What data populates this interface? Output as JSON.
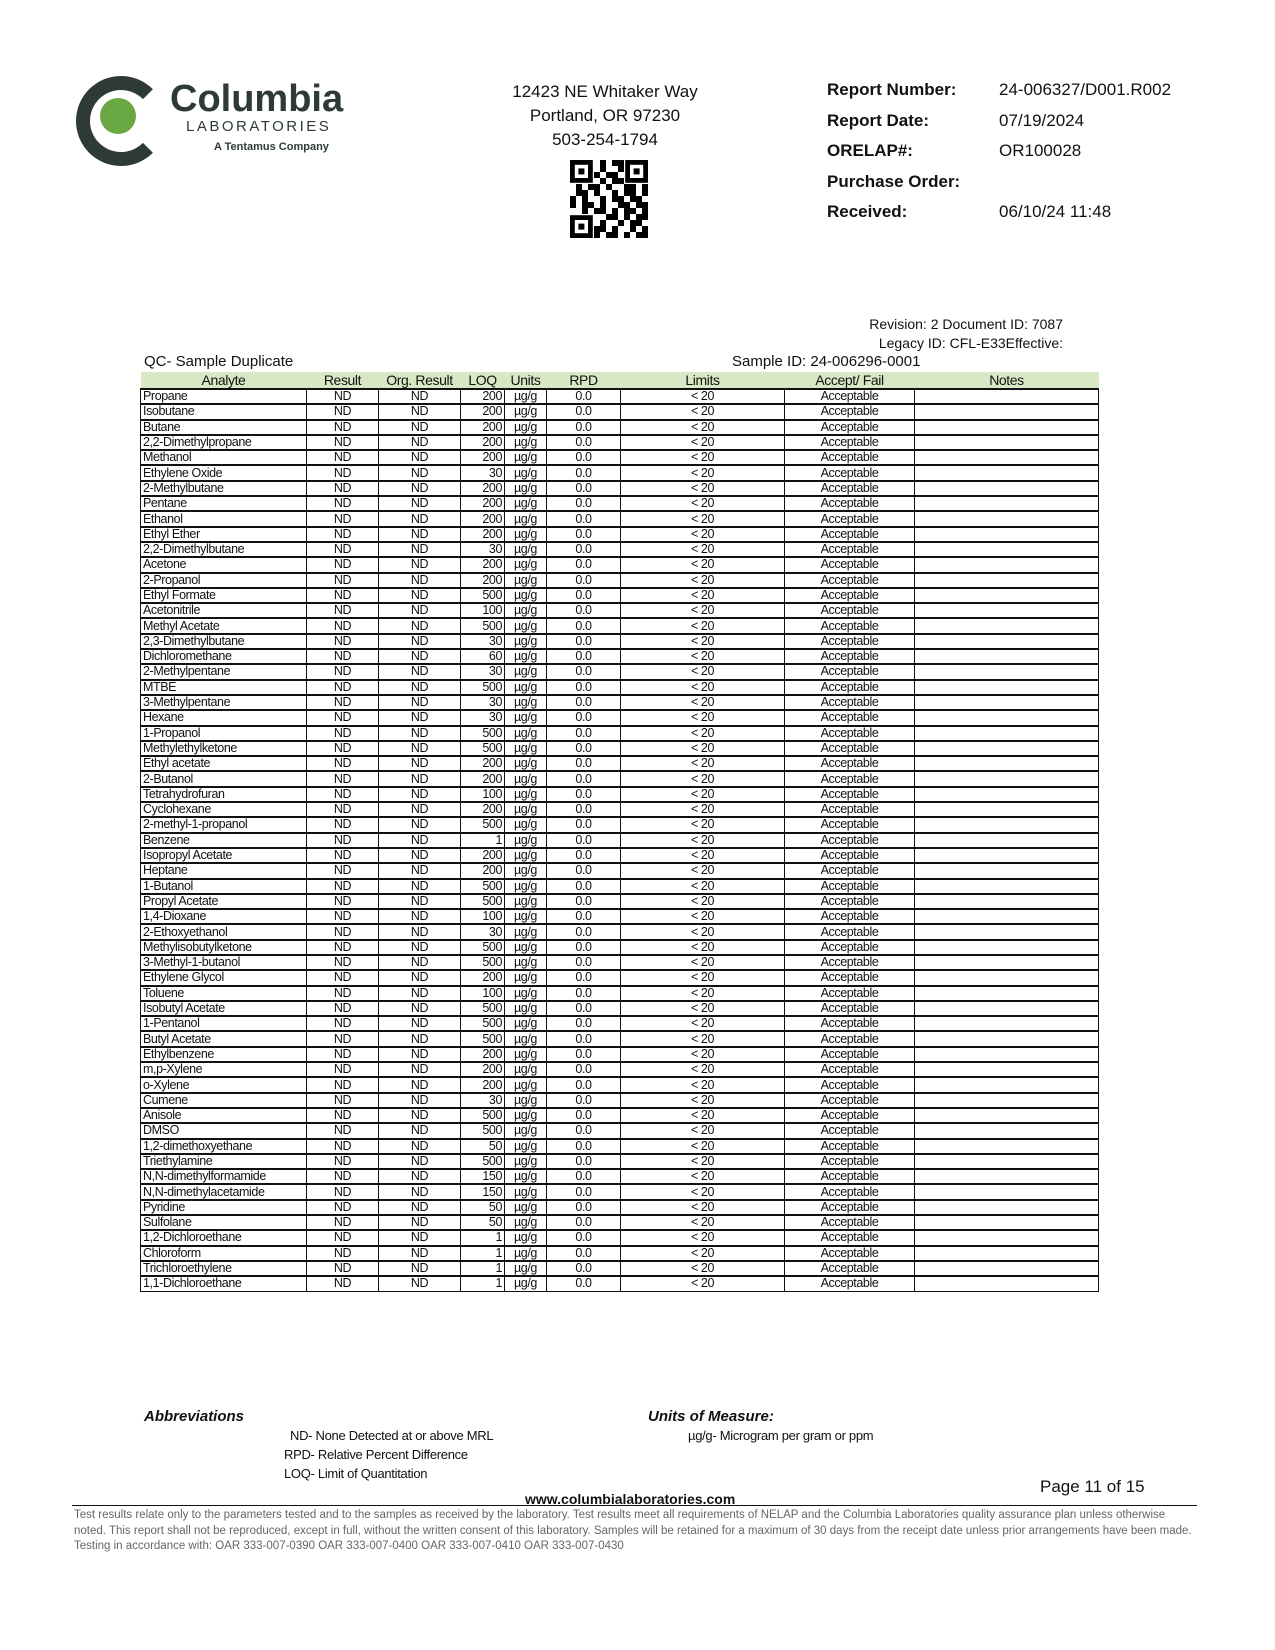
{
  "brand": {
    "name": "Columbia",
    "sub": "LABORATORIES",
    "tag": "A Tentamus Company",
    "accent": "#6aa843",
    "dark": "#2d3a35"
  },
  "address": {
    "line1": "12423 NE Whitaker Way",
    "line2": "Portland, OR 97230",
    "phone": "503-254-1794"
  },
  "report": [
    {
      "k": "Report Number:",
      "v": "24-006327/D001.R002"
    },
    {
      "k": "Report Date:",
      "v": "07/19/2024"
    },
    {
      "k": "ORELAP#:",
      "v": "OR100028"
    },
    {
      "k": "Purchase Order:",
      "v": ""
    },
    {
      "k": "Received:",
      "v": "06/10/24  11:48"
    }
  ],
  "revision": "Revision: 2 Document ID: 7087",
  "legacy": "Legacy ID: CFL-E33Effective:",
  "section_title": "QC- Sample Duplicate",
  "sample_id": "Sample ID: 24-006296-0001",
  "columns": [
    "Analyte",
    "Result",
    "Org. Result",
    "LOQ",
    "Units",
    "RPD",
    "Limits",
    "Accept/ Fail",
    "Notes"
  ],
  "common": {
    "result": "ND",
    "org_result": "ND",
    "units": "µg/g",
    "rpd": "0.0",
    "limits": "< 20",
    "status": "Acceptable"
  },
  "rows": [
    [
      "Propane",
      "200"
    ],
    [
      "Isobutane",
      "200"
    ],
    [
      "Butane",
      "200"
    ],
    [
      "2,2-Dimethylpropane",
      "200"
    ],
    [
      "Methanol",
      "200"
    ],
    [
      "Ethylene Oxide",
      "30"
    ],
    [
      "2-Methylbutane",
      "200"
    ],
    [
      "Pentane",
      "200"
    ],
    [
      "Ethanol",
      "200"
    ],
    [
      "Ethyl Ether",
      "200"
    ],
    [
      "2,2-Dimethylbutane",
      "30"
    ],
    [
      "Acetone",
      "200"
    ],
    [
      "2-Propanol",
      "200"
    ],
    [
      "Ethyl Formate",
      "500"
    ],
    [
      "Acetonitrile",
      "100"
    ],
    [
      "Methyl Acetate",
      "500"
    ],
    [
      "2,3-Dimethylbutane",
      "30"
    ],
    [
      "Dichloromethane",
      "60"
    ],
    [
      "2-Methylpentane",
      "30"
    ],
    [
      "MTBE",
      "500"
    ],
    [
      "3-Methylpentane",
      "30"
    ],
    [
      "Hexane",
      "30"
    ],
    [
      "1-Propanol",
      "500"
    ],
    [
      "Methylethylketone",
      "500"
    ],
    [
      "Ethyl acetate",
      "200"
    ],
    [
      "2-Butanol",
      "200"
    ],
    [
      "Tetrahydrofuran",
      "100"
    ],
    [
      "Cyclohexane",
      "200"
    ],
    [
      "2-methyl-1-propanol",
      "500"
    ],
    [
      "Benzene",
      "1"
    ],
    [
      "Isopropyl Acetate",
      "200"
    ],
    [
      "Heptane",
      "200"
    ],
    [
      "1-Butanol",
      "500"
    ],
    [
      "Propyl Acetate",
      "500"
    ],
    [
      "1,4-Dioxane",
      "100"
    ],
    [
      "2-Ethoxyethanol",
      "30"
    ],
    [
      "Methylisobutylketone",
      "500"
    ],
    [
      "3-Methyl-1-butanol",
      "500"
    ],
    [
      "Ethylene Glycol",
      "200"
    ],
    [
      "Toluene",
      "100"
    ],
    [
      "Isobutyl Acetate",
      "500"
    ],
    [
      "1-Pentanol",
      "500"
    ],
    [
      "Butyl Acetate",
      "500"
    ],
    [
      "Ethylbenzene",
      "200"
    ],
    [
      "m,p-Xylene",
      "200"
    ],
    [
      "o-Xylene",
      "200"
    ],
    [
      "Cumene",
      "30"
    ],
    [
      "Anisole",
      "500"
    ],
    [
      "DMSO",
      "500"
    ],
    [
      "1,2-dimethoxyethane",
      "50"
    ],
    [
      "Triethylamine",
      "500"
    ],
    [
      "N,N-dimethylformamide",
      "150"
    ],
    [
      "N,N-dimethylacetamide",
      "150"
    ],
    [
      "Pyridine",
      "50"
    ],
    [
      "Sulfolane",
      "50"
    ],
    [
      "1,2-Dichloroethane",
      "1"
    ],
    [
      "Chloroform",
      "1"
    ],
    [
      "Trichloroethylene",
      "1"
    ],
    [
      "1,1-Dichloroethane",
      "1"
    ]
  ],
  "abbreviations": {
    "title": "Abbreviations",
    "items": [
      "ND- None Detected at or above MRL",
      "RPD- Relative Percent Difference",
      "LOQ- Limit of Quantitation"
    ]
  },
  "units_of_measure": {
    "title": "Units of Measure:",
    "item": "µg/g- Microgram per gram or ppm"
  },
  "page": "Page 11 of 15",
  "website": "www.columbialaboratories.com",
  "disclaimer": "Test results relate only to the parameters tested and to the samples as received by the laboratory. Test results meet all requirements of NELAP and the Columbia Laboratories quality assurance plan unless otherwise noted. This report shall not be reproduced, except in full, without the written consent of this laboratory. Samples will be retained for a maximum of 30 days from the receipt date unless prior arrangements have been made.",
  "testing": "Testing in accordance with: OAR 333-007-0390 OAR 333-007-0400 OAR 333-007-0410  OAR 333-007-0430"
}
